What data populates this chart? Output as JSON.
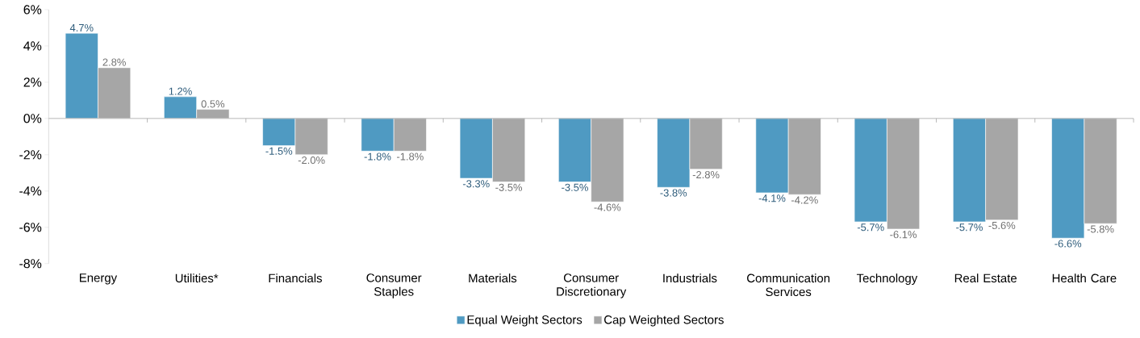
{
  "chart_data": {
    "type": "bar",
    "categories": [
      "Energy",
      "Utilities*",
      "Financials",
      "Consumer Staples",
      "Materials",
      "Consumer Discretionary",
      "Industrials",
      "Communication Services",
      "Technology",
      "Real Estate",
      "Health Care"
    ],
    "series": [
      {
        "name": "Equal Weight Sectors",
        "color": "#4f9ac2",
        "values": [
          4.7,
          1.2,
          -1.5,
          -1.8,
          -3.3,
          -3.5,
          -3.8,
          -4.1,
          -5.7,
          -5.7,
          -6.6
        ],
        "value_labels": [
          "4.7%",
          "1.2%",
          "-1.5%",
          "-1.8%",
          "-3.3%",
          "-3.5%",
          "-3.8%",
          "-4.1%",
          "-5.7%",
          "-5.7%",
          "-6.6%"
        ]
      },
      {
        "name": "Cap Weighted Sectors",
        "color": "#a6a6a6",
        "values": [
          2.8,
          0.5,
          -2.0,
          -1.8,
          -3.5,
          -4.6,
          -2.8,
          -4.2,
          -6.1,
          -5.6,
          -5.8
        ],
        "value_labels": [
          "2.8%",
          "0.5%",
          "-2.0%",
          "-1.8%",
          "-3.5%",
          "-4.6%",
          "-2.8%",
          "-4.2%",
          "-6.1%",
          "-5.6%",
          "-5.8%"
        ]
      }
    ],
    "ylim": [
      -8,
      6
    ],
    "yticks": [
      {
        "value": -8,
        "label": "-8%"
      },
      {
        "value": -6,
        "label": "-6%"
      },
      {
        "value": -4,
        "label": "-4%"
      },
      {
        "value": -2,
        "label": "-2%"
      },
      {
        "value": 0,
        "label": "0%"
      },
      {
        "value": 2,
        "label": "2%"
      },
      {
        "value": 4,
        "label": "4%"
      },
      {
        "value": 6,
        "label": "6%"
      }
    ],
    "legend": "bottom"
  }
}
